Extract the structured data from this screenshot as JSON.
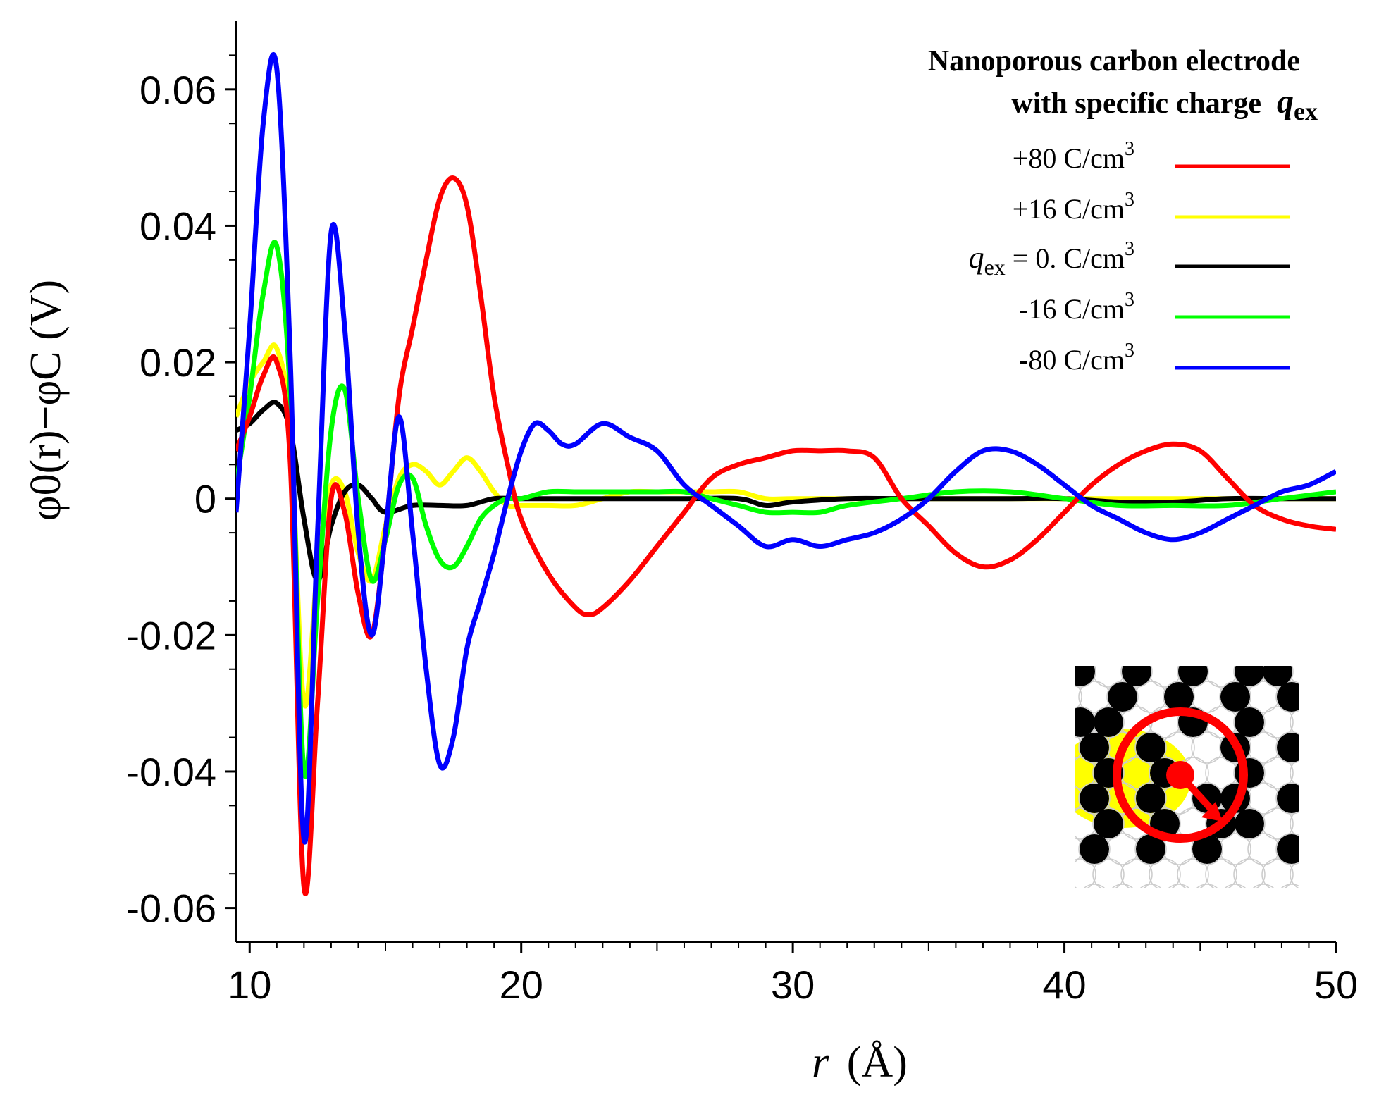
{
  "chart_data": {
    "type": "line",
    "title": "",
    "xlabel": "r (Å)",
    "xlabel_var": "r",
    "xlabel_unit": "(Å)",
    "ylabel": "φ0(r)−φC (V)",
    "xlim": [
      9.5,
      50
    ],
    "ylim": [
      -0.065,
      0.07
    ],
    "xticks": [
      10,
      20,
      30,
      40,
      50
    ],
    "yticks": [
      -0.06,
      -0.04,
      -0.02,
      0,
      0.02,
      0.04,
      0.06
    ],
    "ytick_labels": [
      "-0.06",
      "-0.04",
      "-0.02",
      "0",
      "0.02",
      "0.04",
      "0.06"
    ],
    "xtick_labels": [
      "10",
      "20",
      "30",
      "40",
      "50"
    ],
    "legend": {
      "title_line1": "Nanoporous carbon electrode",
      "title_line2": "with specific charge",
      "title_symbol": "q",
      "title_symbol_sub": "ex",
      "position": "top-right"
    },
    "series": [
      {
        "name": "+80 C/cm³",
        "label": "+80 C/cm",
        "label_sup": "3",
        "color": "#ff0000",
        "x": [
          9.5,
          10.0,
          10.5,
          11.0,
          11.5,
          12.0,
          12.5,
          13.0,
          13.5,
          14.0,
          14.5,
          15.0,
          15.5,
          16.0,
          16.5,
          17.0,
          17.5,
          18.0,
          18.5,
          19.0,
          19.5,
          20.0,
          21.0,
          22.0,
          22.5,
          23.0,
          24.0,
          25.0,
          26.0,
          27.0,
          28.0,
          29.0,
          30.0,
          31.0,
          32.0,
          33.0,
          34.0,
          35.0,
          36.0,
          37.0,
          38.0,
          39.0,
          40.0,
          41.0,
          42.0,
          43.0,
          44.0,
          45.0,
          46.0,
          47.0,
          48.0,
          49.0,
          50.0
        ],
        "y": [
          0.007,
          0.012,
          0.018,
          0.02,
          0.005,
          -0.057,
          -0.03,
          0.0,
          -0.002,
          -0.014,
          -0.02,
          -0.005,
          0.015,
          0.025,
          0.035,
          0.044,
          0.047,
          0.043,
          0.03,
          0.015,
          0.005,
          -0.003,
          -0.011,
          -0.016,
          -0.017,
          -0.016,
          -0.012,
          -0.007,
          -0.002,
          0.003,
          0.005,
          0.006,
          0.007,
          0.007,
          0.007,
          0.006,
          0.0,
          -0.004,
          -0.008,
          -0.01,
          -0.009,
          -0.006,
          -0.002,
          0.002,
          0.005,
          0.007,
          0.008,
          0.007,
          0.003,
          -0.001,
          -0.003,
          -0.004,
          -0.0045
        ]
      },
      {
        "name": "+16 C/cm³",
        "label": "+16 C/cm",
        "label_sup": "3",
        "color": "#ffff00",
        "x": [
          9.5,
          10.0,
          10.5,
          11.0,
          11.5,
          12.0,
          12.5,
          13.0,
          13.5,
          14.0,
          14.5,
          15.0,
          15.5,
          16.0,
          16.5,
          17.0,
          17.5,
          18.0,
          18.5,
          19.0,
          19.5,
          20.0,
          21.0,
          22.0,
          23.0,
          24.0,
          25.0,
          26.0,
          27.0,
          28.0,
          29.0,
          30.0,
          32.0,
          34.0,
          36.0,
          38.0,
          40.0,
          42.0,
          44.0,
          46.0,
          48.0,
          50.0
        ],
        "y": [
          0.012,
          0.017,
          0.02,
          0.022,
          0.01,
          -0.03,
          -0.01,
          0.002,
          0.001,
          -0.008,
          -0.012,
          -0.004,
          0.003,
          0.005,
          0.004,
          0.002,
          0.004,
          0.006,
          0.004,
          0.001,
          -0.001,
          -0.001,
          -0.001,
          -0.001,
          0.0,
          0.001,
          0.001,
          0.001,
          0.001,
          0.001,
          0.0,
          0.0,
          0.0,
          0.0,
          0.0,
          0.0,
          0.0,
          0.0,
          0.0,
          0.0,
          0.0,
          0.0
        ]
      },
      {
        "name": "q_ex = 0. C/cm³",
        "label_sym": "q",
        "label_sub": "ex",
        "label": " =  0. C/cm",
        "label_sup": "3",
        "color": "#000000",
        "x": [
          9.5,
          10.0,
          10.5,
          11.0,
          11.5,
          12.0,
          12.5,
          13.0,
          13.5,
          14.0,
          14.5,
          15.0,
          16.0,
          17.0,
          18.0,
          19.0,
          20.0,
          22.0,
          24.0,
          26.0,
          28.0,
          29.0,
          30.0,
          32.0,
          34.0,
          36.0,
          38.0,
          40.0,
          42.0,
          44.0,
          46.0,
          48.0,
          50.0
        ],
        "y": [
          0.01,
          0.011,
          0.013,
          0.014,
          0.01,
          -0.003,
          -0.012,
          -0.004,
          0.001,
          0.002,
          0.0,
          -0.002,
          -0.001,
          -0.001,
          -0.001,
          0.0,
          0.0,
          0.0,
          0.0,
          0.0,
          0.0,
          -0.001,
          -0.0005,
          0.0,
          0.0,
          0.0,
          0.0,
          0.0,
          -0.0005,
          -0.0005,
          0.0,
          0.0,
          0.0
        ]
      },
      {
        "name": "-16 C/cm³",
        "label": "-16 C/cm",
        "label_sup": "3",
        "color": "#00ff00",
        "x": [
          9.5,
          10.0,
          10.5,
          11.0,
          11.5,
          12.0,
          12.5,
          13.0,
          13.5,
          14.0,
          14.5,
          15.0,
          15.5,
          16.0,
          16.5,
          17.0,
          17.5,
          18.0,
          18.5,
          19.0,
          19.5,
          20.0,
          21.0,
          22.0,
          23.0,
          24.0,
          25.0,
          26.0,
          27.0,
          28.0,
          29.0,
          30.0,
          31.0,
          32.0,
          34.0,
          36.0,
          38.0,
          40.0,
          42.0,
          44.0,
          46.0,
          48.0,
          50.0
        ],
        "y": [
          0.002,
          0.015,
          0.03,
          0.037,
          0.015,
          -0.04,
          -0.015,
          0.01,
          0.016,
          0.0,
          -0.012,
          -0.006,
          0.002,
          0.003,
          -0.004,
          -0.009,
          -0.01,
          -0.007,
          -0.003,
          -0.001,
          0.0,
          0.0,
          0.001,
          0.001,
          0.001,
          0.001,
          0.001,
          0.001,
          0.0,
          -0.001,
          -0.002,
          -0.002,
          -0.002,
          -0.001,
          0.0,
          0.001,
          0.001,
          0.0,
          -0.001,
          -0.001,
          -0.001,
          0.0,
          0.001
        ]
      },
      {
        "name": "-80 C/cm³",
        "label": "-80 C/cm",
        "label_sup": "3",
        "color": "#0000ff",
        "x": [
          9.5,
          10.0,
          10.5,
          11.0,
          11.5,
          12.0,
          12.5,
          13.0,
          13.5,
          14.0,
          14.5,
          15.0,
          15.5,
          16.0,
          16.5,
          17.0,
          17.5,
          18.0,
          18.5,
          19.0,
          19.5,
          20.0,
          20.5,
          21.0,
          21.5,
          22.0,
          23.0,
          24.0,
          25.0,
          26.0,
          27.0,
          28.0,
          29.0,
          30.0,
          31.0,
          32.0,
          33.0,
          34.0,
          35.0,
          36.0,
          37.0,
          38.0,
          39.0,
          40.0,
          41.0,
          42.0,
          43.0,
          44.0,
          45.0,
          46.0,
          47.0,
          48.0,
          49.0,
          50.0
        ],
        "y": [
          -0.002,
          0.025,
          0.055,
          0.063,
          0.02,
          -0.05,
          -0.005,
          0.039,
          0.025,
          -0.005,
          -0.02,
          -0.005,
          0.012,
          -0.005,
          -0.025,
          -0.039,
          -0.035,
          -0.022,
          -0.015,
          -0.008,
          0.0,
          0.007,
          0.011,
          0.01,
          0.008,
          0.008,
          0.011,
          0.009,
          0.007,
          0.002,
          -0.001,
          -0.004,
          -0.007,
          -0.006,
          -0.007,
          -0.006,
          -0.005,
          -0.003,
          0.0,
          0.004,
          0.007,
          0.007,
          0.005,
          0.002,
          -0.001,
          -0.003,
          -0.005,
          -0.006,
          -0.005,
          -0.003,
          -0.001,
          0.001,
          0.002,
          0.004
        ]
      }
    ]
  },
  "inset": {
    "description_icon": "carbon-lattice-inset-icon",
    "colors": {
      "atom": "#000000",
      "pore": "#ffff00",
      "marker": "#ff0000",
      "grid": "#cccccc"
    }
  }
}
